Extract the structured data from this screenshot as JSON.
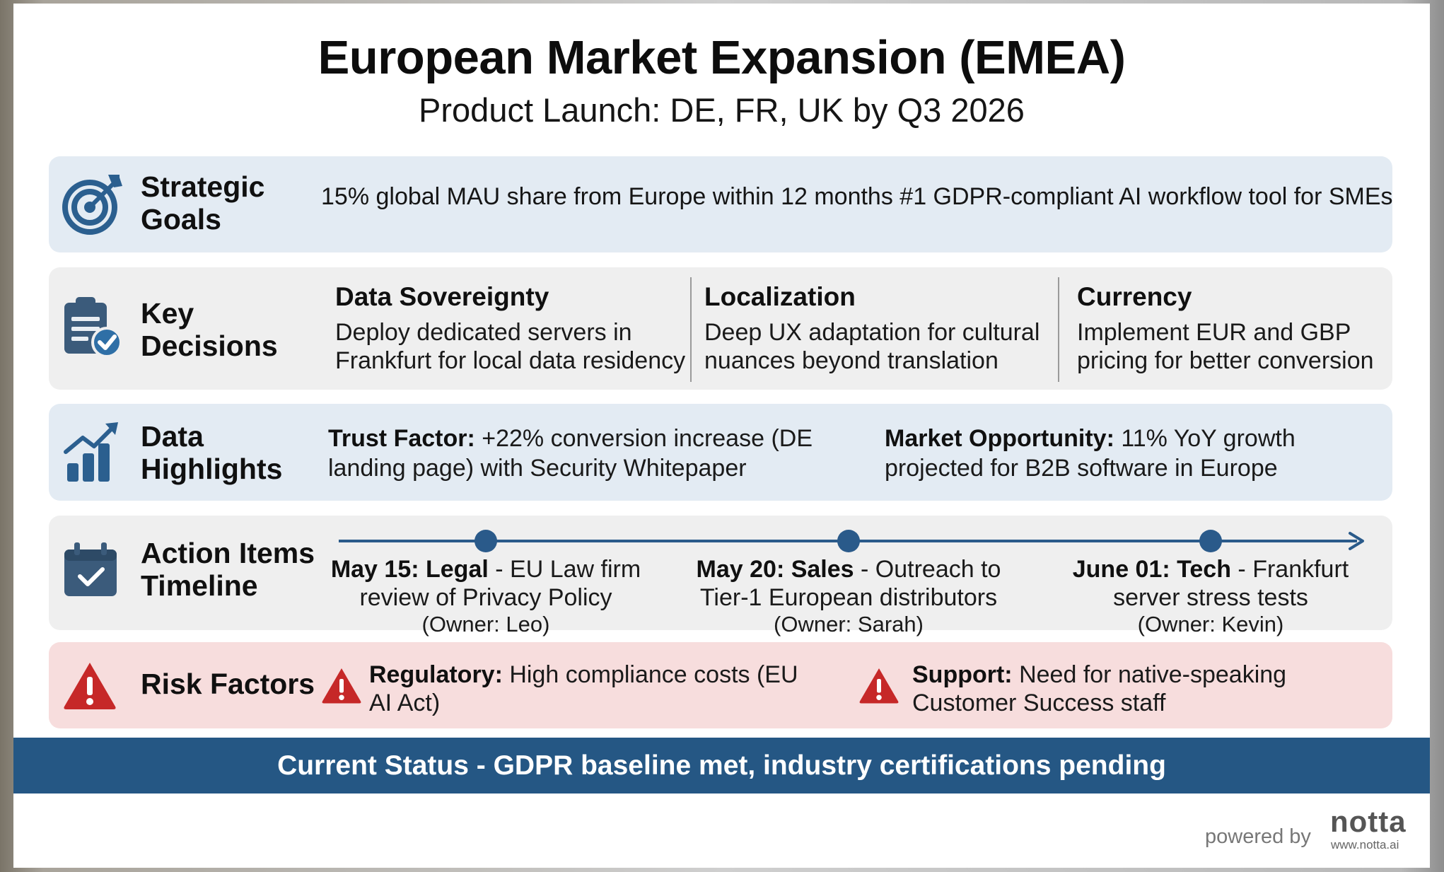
{
  "header": {
    "title": "European Market Expansion (EMEA)",
    "subtitle": "Product Launch: DE, FR, UK by Q3 2026"
  },
  "strategic_goals": {
    "label_line1": "Strategic",
    "label_line2": "Goals",
    "text": "15% global MAU share from Europe within 12 months #1 GDPR-compliant AI workflow tool for SMEs",
    "icon": "target-icon"
  },
  "key_decisions": {
    "label_line1": "Key",
    "label_line2": "Decisions",
    "icon": "clipboard-check-icon",
    "items": [
      {
        "title": "Data Sovereignty",
        "line1": "Deploy dedicated servers in",
        "line2": "Frankfurt for local data residency"
      },
      {
        "title": "Localization",
        "line1": "Deep UX adaptation for cultural",
        "line2": "nuances beyond translation"
      },
      {
        "title": "Currency",
        "line1": "Implement EUR and GBP",
        "line2": "pricing for better conversion"
      }
    ]
  },
  "data_highlights": {
    "label_line1": "Data",
    "label_line2": "Highlights",
    "icon": "growth-chart-icon",
    "items": [
      {
        "bold": "Trust Factor:",
        "line1": " +22% conversion increase (DE",
        "line2": "landing page) with Security Whitepaper"
      },
      {
        "bold": "Market Opportunity:",
        "line1": " 11% YoY growth",
        "line2": "projected for B2B software in Europe"
      }
    ]
  },
  "action_items": {
    "label_line1": "Action Items",
    "label_line2": "Timeline",
    "icon": "calendar-check-icon",
    "items": [
      {
        "bold": "May 15: Legal",
        "line1": " - EU Law firm",
        "line2": "review of Privacy Policy",
        "owner": "(Owner: Leo)"
      },
      {
        "bold": "May 20: Sales",
        "line1": " - Outreach to",
        "line2": "Tier-1 European distributors",
        "owner": "(Owner: Sarah)"
      },
      {
        "bold": "June 01: Tech",
        "line1": " - Frankfurt",
        "line2": "server stress tests",
        "owner": "(Owner: Kevin)"
      }
    ]
  },
  "risk_factors": {
    "label": "Risk Factors",
    "icon": "warning-icon",
    "items": [
      {
        "bold": "Regulatory:",
        "line1": " High compliance costs (EU",
        "line2": "AI Act)"
      },
      {
        "bold": "Support:",
        "line1": " Need for native-speaking",
        "line2": "Customer Success staff"
      }
    ]
  },
  "status": {
    "text": "Current Status - GDPR baseline met, industry certifications pending"
  },
  "footer": {
    "powered_by": "powered by",
    "brand": "notta",
    "url": "www.notta.ai"
  },
  "colors": {
    "accent": "#255784",
    "blue_row": "#e3ebf3",
    "gray_row": "#efefef",
    "risk_row": "#f7dddd",
    "warning": "#c62828"
  }
}
